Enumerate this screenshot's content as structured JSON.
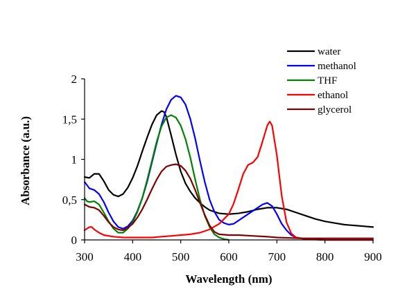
{
  "chart_data": {
    "type": "line",
    "title": "",
    "xlabel": "Wavelength (nm)",
    "ylabel": "Absorbance (a.u.)",
    "xlim": [
      300,
      900
    ],
    "ylim": [
      0,
      2
    ],
    "x_ticks": [
      300,
      400,
      500,
      600,
      700,
      800,
      900
    ],
    "y_ticks": [
      0,
      0.5,
      1,
      1.5,
      2
    ],
    "x_tick_labels": [
      "300",
      "400",
      "500",
      "600",
      "700",
      "800",
      "900"
    ],
    "y_tick_labels": [
      "0",
      "0,5",
      "1",
      "1,5",
      "2"
    ],
    "grid": false,
    "legend_position": "top-right",
    "series": [
      {
        "name": "water",
        "color": "#000000",
        "points": [
          [
            300,
            0.78
          ],
          [
            310,
            0.77
          ],
          [
            320,
            0.82
          ],
          [
            330,
            0.82
          ],
          [
            340,
            0.73
          ],
          [
            350,
            0.62
          ],
          [
            360,
            0.56
          ],
          [
            370,
            0.54
          ],
          [
            380,
            0.57
          ],
          [
            390,
            0.65
          ],
          [
            400,
            0.77
          ],
          [
            410,
            0.92
          ],
          [
            420,
            1.1
          ],
          [
            430,
            1.27
          ],
          [
            440,
            1.43
          ],
          [
            450,
            1.55
          ],
          [
            460,
            1.6
          ],
          [
            465,
            1.59
          ],
          [
            470,
            1.53
          ],
          [
            480,
            1.3
          ],
          [
            490,
            1.06
          ],
          [
            500,
            0.85
          ],
          [
            510,
            0.7
          ],
          [
            520,
            0.6
          ],
          [
            530,
            0.52
          ],
          [
            540,
            0.46
          ],
          [
            550,
            0.41
          ],
          [
            560,
            0.37
          ],
          [
            570,
            0.35
          ],
          [
            580,
            0.33
          ],
          [
            600,
            0.32
          ],
          [
            620,
            0.33
          ],
          [
            640,
            0.35
          ],
          [
            660,
            0.38
          ],
          [
            680,
            0.4
          ],
          [
            700,
            0.4
          ],
          [
            720,
            0.38
          ],
          [
            740,
            0.34
          ],
          [
            760,
            0.3
          ],
          [
            780,
            0.26
          ],
          [
            800,
            0.23
          ],
          [
            820,
            0.21
          ],
          [
            840,
            0.19
          ],
          [
            860,
            0.18
          ],
          [
            880,
            0.17
          ],
          [
            900,
            0.16
          ]
        ]
      },
      {
        "name": "methanol",
        "color": "#0000ff",
        "points": [
          [
            300,
            0.72
          ],
          [
            305,
            0.68
          ],
          [
            310,
            0.64
          ],
          [
            320,
            0.62
          ],
          [
            330,
            0.57
          ],
          [
            340,
            0.47
          ],
          [
            350,
            0.34
          ],
          [
            360,
            0.23
          ],
          [
            370,
            0.16
          ],
          [
            380,
            0.14
          ],
          [
            390,
            0.17
          ],
          [
            400,
            0.24
          ],
          [
            410,
            0.36
          ],
          [
            420,
            0.52
          ],
          [
            430,
            0.72
          ],
          [
            440,
            0.96
          ],
          [
            450,
            1.2
          ],
          [
            460,
            1.43
          ],
          [
            470,
            1.62
          ],
          [
            480,
            1.74
          ],
          [
            490,
            1.79
          ],
          [
            500,
            1.77
          ],
          [
            510,
            1.68
          ],
          [
            520,
            1.5
          ],
          [
            530,
            1.26
          ],
          [
            540,
            0.98
          ],
          [
            550,
            0.72
          ],
          [
            560,
            0.5
          ],
          [
            570,
            0.35
          ],
          [
            580,
            0.25
          ],
          [
            590,
            0.21
          ],
          [
            600,
            0.19
          ],
          [
            610,
            0.2
          ],
          [
            620,
            0.24
          ],
          [
            640,
            0.32
          ],
          [
            660,
            0.4
          ],
          [
            670,
            0.44
          ],
          [
            680,
            0.46
          ],
          [
            690,
            0.42
          ],
          [
            700,
            0.32
          ],
          [
            710,
            0.2
          ],
          [
            720,
            0.12
          ],
          [
            730,
            0.06
          ],
          [
            740,
            0.03
          ],
          [
            760,
            0.01
          ],
          [
            800,
            0.0
          ],
          [
            850,
            0.0
          ],
          [
            900,
            0.0
          ]
        ]
      },
      {
        "name": "THF",
        "color": "#008000",
        "points": [
          [
            300,
            0.52
          ],
          [
            305,
            0.48
          ],
          [
            310,
            0.47
          ],
          [
            320,
            0.48
          ],
          [
            330,
            0.44
          ],
          [
            340,
            0.34
          ],
          [
            350,
            0.23
          ],
          [
            360,
            0.14
          ],
          [
            370,
            0.09
          ],
          [
            380,
            0.09
          ],
          [
            390,
            0.14
          ],
          [
            400,
            0.22
          ],
          [
            410,
            0.35
          ],
          [
            420,
            0.52
          ],
          [
            430,
            0.74
          ],
          [
            440,
            0.98
          ],
          [
            450,
            1.22
          ],
          [
            460,
            1.41
          ],
          [
            470,
            1.52
          ],
          [
            480,
            1.55
          ],
          [
            490,
            1.52
          ],
          [
            500,
            1.42
          ],
          [
            510,
            1.25
          ],
          [
            520,
            1.02
          ],
          [
            530,
            0.75
          ],
          [
            540,
            0.5
          ],
          [
            550,
            0.3
          ],
          [
            560,
            0.16
          ],
          [
            570,
            0.07
          ],
          [
            580,
            0.03
          ],
          [
            590,
            0.01
          ],
          [
            600,
            0.0
          ]
        ]
      },
      {
        "name": "ethanol",
        "color": "#ff0000",
        "points": [
          [
            300,
            0.12
          ],
          [
            310,
            0.16
          ],
          [
            315,
            0.16
          ],
          [
            320,
            0.13
          ],
          [
            330,
            0.09
          ],
          [
            340,
            0.06
          ],
          [
            360,
            0.04
          ],
          [
            380,
            0.03
          ],
          [
            400,
            0.03
          ],
          [
            420,
            0.03
          ],
          [
            440,
            0.03
          ],
          [
            460,
            0.04
          ],
          [
            480,
            0.05
          ],
          [
            500,
            0.06
          ],
          [
            520,
            0.07
          ],
          [
            540,
            0.09
          ],
          [
            560,
            0.13
          ],
          [
            580,
            0.2
          ],
          [
            600,
            0.32
          ],
          [
            610,
            0.45
          ],
          [
            620,
            0.63
          ],
          [
            630,
            0.82
          ],
          [
            640,
            0.93
          ],
          [
            650,
            0.96
          ],
          [
            660,
            1.03
          ],
          [
            670,
            1.22
          ],
          [
            680,
            1.42
          ],
          [
            685,
            1.47
          ],
          [
            690,
            1.42
          ],
          [
            700,
            1.05
          ],
          [
            710,
            0.55
          ],
          [
            720,
            0.22
          ],
          [
            730,
            0.08
          ],
          [
            740,
            0.03
          ],
          [
            760,
            0.01
          ],
          [
            800,
            0.0
          ],
          [
            900,
            0.0
          ]
        ]
      },
      {
        "name": "glycerol",
        "color": "#800000",
        "points": [
          [
            300,
            0.44
          ],
          [
            310,
            0.41
          ],
          [
            320,
            0.4
          ],
          [
            330,
            0.37
          ],
          [
            340,
            0.3
          ],
          [
            350,
            0.22
          ],
          [
            360,
            0.16
          ],
          [
            370,
            0.13
          ],
          [
            380,
            0.12
          ],
          [
            390,
            0.15
          ],
          [
            400,
            0.2
          ],
          [
            410,
            0.28
          ],
          [
            420,
            0.38
          ],
          [
            430,
            0.5
          ],
          [
            440,
            0.63
          ],
          [
            450,
            0.75
          ],
          [
            460,
            0.85
          ],
          [
            470,
            0.91
          ],
          [
            480,
            0.93
          ],
          [
            490,
            0.94
          ],
          [
            500,
            0.92
          ],
          [
            510,
            0.86
          ],
          [
            520,
            0.76
          ],
          [
            530,
            0.62
          ],
          [
            540,
            0.46
          ],
          [
            550,
            0.31
          ],
          [
            560,
            0.18
          ],
          [
            570,
            0.1
          ],
          [
            580,
            0.07
          ],
          [
            600,
            0.06
          ],
          [
            620,
            0.06
          ],
          [
            650,
            0.05
          ],
          [
            680,
            0.04
          ],
          [
            700,
            0.03
          ],
          [
            750,
            0.02
          ],
          [
            800,
            0.02
          ],
          [
            900,
            0.02
          ]
        ]
      }
    ]
  }
}
